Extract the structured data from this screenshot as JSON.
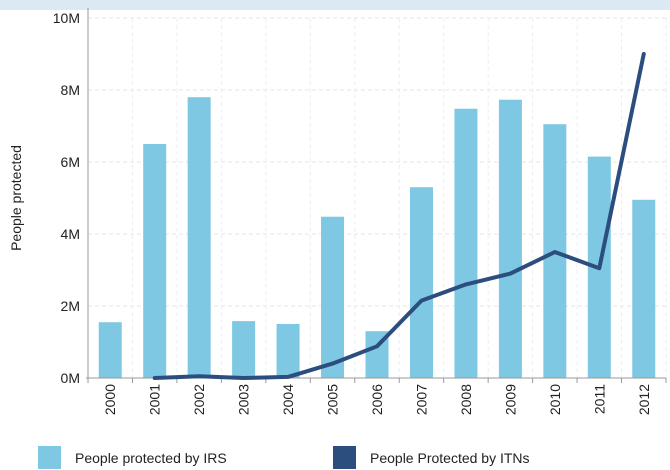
{
  "chart_data": {
    "type": "bar",
    "categories": [
      "2000",
      "2001",
      "2002",
      "2003",
      "2004",
      "2005",
      "2006",
      "2007",
      "2008",
      "2009",
      "2010",
      "2011",
      "2012"
    ],
    "ylabel": "People protected",
    "ylim": [
      0,
      10000000
    ],
    "yticks": [
      {
        "value": 0,
        "label": "0M"
      },
      {
        "value": 2000000,
        "label": "2M"
      },
      {
        "value": 4000000,
        "label": "4M"
      },
      {
        "value": 6000000,
        "label": "6M"
      },
      {
        "value": 8000000,
        "label": "8M"
      },
      {
        "value": 10000000,
        "label": "10M"
      }
    ],
    "grid": true,
    "legend_position": "bottom",
    "series": [
      {
        "name": "People protected by IRS",
        "kind": "bar",
        "color": "#7ec8e3",
        "values": [
          1550000,
          6500000,
          7800000,
          1580000,
          1500000,
          4480000,
          1300000,
          5300000,
          7480000,
          7730000,
          7050000,
          6150000,
          4950000
        ]
      },
      {
        "name": "People Protected by ITNs",
        "kind": "line",
        "color": "#2c4e7e",
        "values": [
          null,
          0,
          50000,
          0,
          30000,
          400000,
          880000,
          2150000,
          2600000,
          2900000,
          3500000,
          3050000,
          9000000
        ]
      }
    ]
  }
}
